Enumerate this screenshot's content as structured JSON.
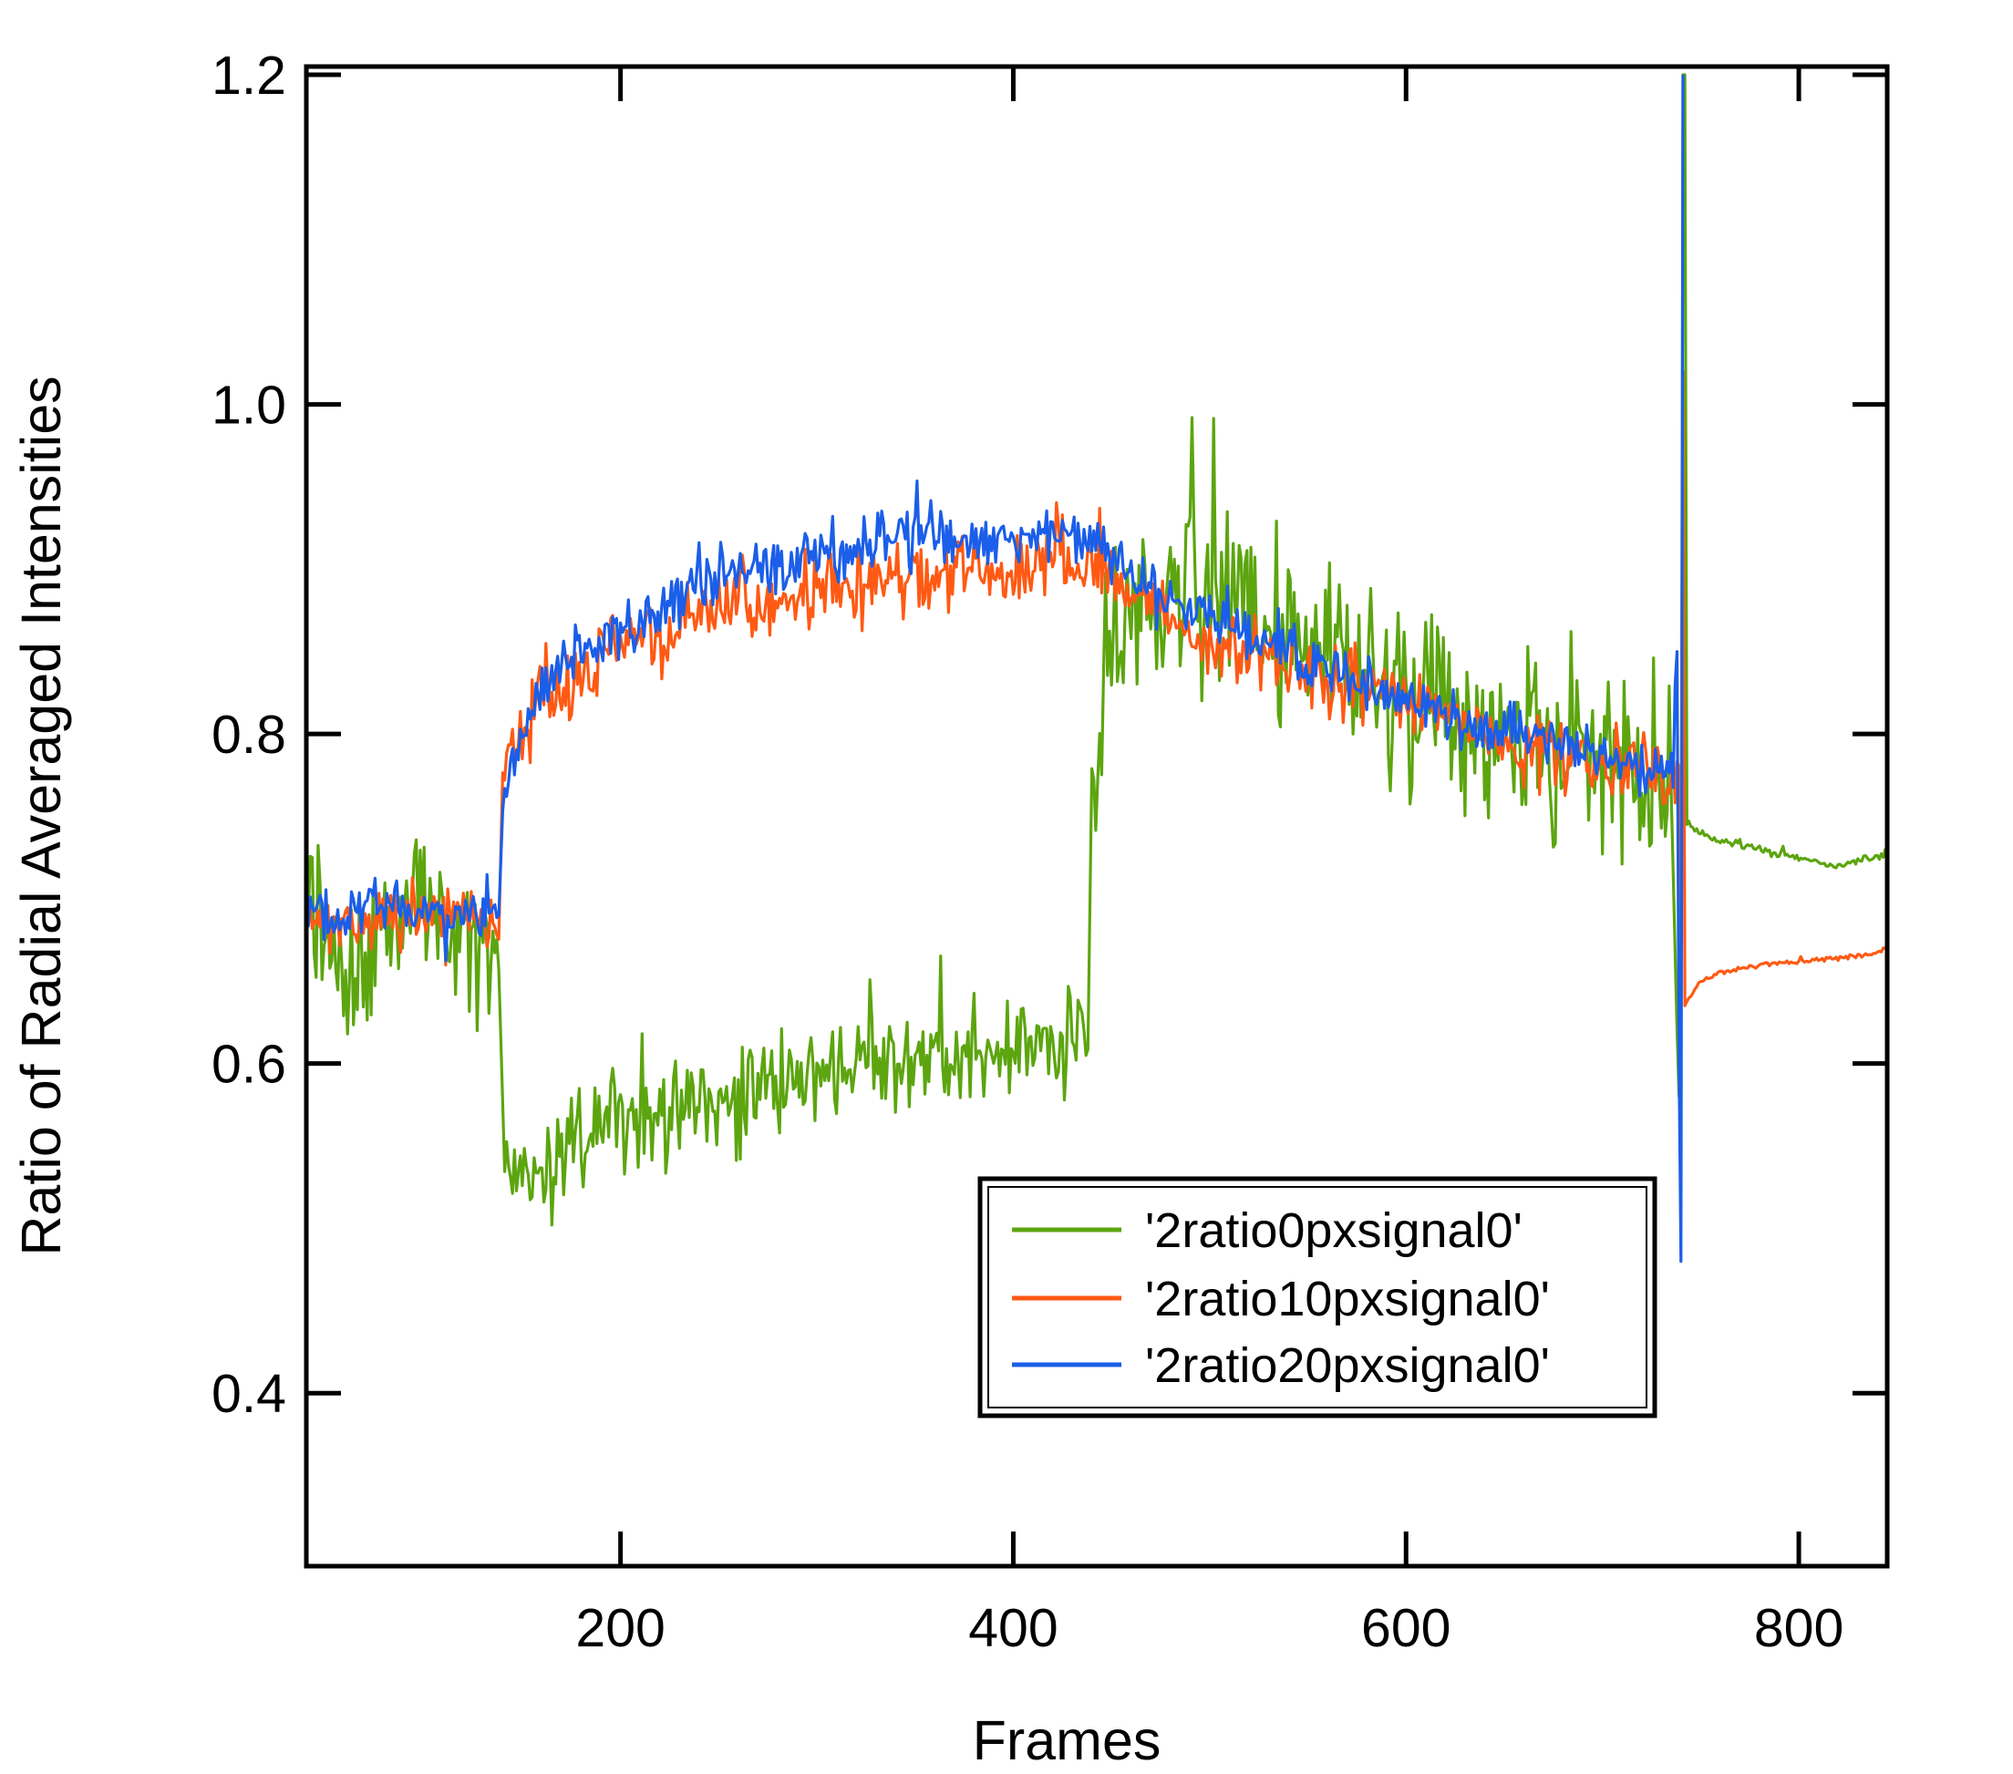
{
  "chart_data": {
    "type": "line",
    "title": "",
    "xlabel": "Frames",
    "ylabel": "Ratio of Radial Averaged Intensities",
    "xlim": [
      40,
      845
    ],
    "ylim": [
      0.295,
      1.205
    ],
    "xticks": [
      200,
      400,
      600,
      800
    ],
    "xtick_labels": [
      "200",
      "400",
      "600",
      "800"
    ],
    "yticks": [
      0.4,
      0.6,
      0.8,
      1.0,
      1.2
    ],
    "ytick_labels": [
      "0.4",
      "0.6",
      "0.8",
      "1.0",
      "1.2"
    ],
    "grid": false,
    "legend_position": "bottom-right",
    "series": [
      {
        "name": "'2ratio0pxsignal0'",
        "color": "#5ca50f",
        "segments": [
          {
            "x": [
              40,
              60,
              80,
              100,
              120,
              138
            ],
            "y": [
              0.69,
              0.66,
              0.68,
              0.7,
              0.68,
              0.67
            ],
            "noise": 0.07
          },
          {
            "x": [
              141,
              160,
              180,
              200,
              220,
              240,
              260,
              280,
              300,
              320,
              340,
              360,
              380,
              400,
              420,
              438
            ],
            "y": [
              0.54,
              0.53,
              0.55,
              0.57,
              0.57,
              0.58,
              0.58,
              0.59,
              0.59,
              0.6,
              0.6,
              0.6,
              0.61,
              0.61,
              0.61,
              0.62
            ],
            "noise": 0.045
          },
          {
            "x": [
              440,
              450,
              460,
              480,
              500,
              520,
              540,
              560,
              580,
              600,
              620,
              640,
              660,
              680,
              700,
              720,
              735
            ],
            "y": [
              0.75,
              0.86,
              0.87,
              0.88,
              0.88,
              0.87,
              0.86,
              0.85,
              0.84,
              0.83,
              0.82,
              0.81,
              0.8,
              0.79,
              0.78,
              0.77,
              0.76
            ],
            "noise": 0.08
          },
          {
            "x": [
              738,
              739,
              740,
              741,
              742,
              743
            ],
            "y": [
              0.62,
              0.58,
              0.64,
              1.2,
              1.2,
              0.75
            ],
            "noise": 0
          },
          {
            "x": [
              743,
              760,
              780,
              800,
              820,
              840,
              845
            ],
            "y": [
              0.745,
              0.735,
              0.73,
              0.725,
              0.72,
              0.725,
              0.73
            ],
            "noise": 0.004
          }
        ]
      },
      {
        "name": "'2ratio10pxsignal0'",
        "color": "#ff5a14",
        "segments": [
          {
            "x": [
              40,
              60,
              80,
              100,
              120,
              138
            ],
            "y": [
              0.69,
              0.68,
              0.69,
              0.69,
              0.69,
              0.68
            ],
            "noise": 0.025
          },
          {
            "x": [
              140,
              160,
              180,
              200,
              220,
              240,
              260,
              280,
              300,
              320,
              340,
              360,
              380,
              400,
              420,
              440
            ],
            "y": [
              0.77,
              0.82,
              0.83,
              0.85,
              0.86,
              0.87,
              0.88,
              0.88,
              0.89,
              0.89,
              0.89,
              0.89,
              0.9,
              0.9,
              0.91,
              0.9
            ],
            "noise": 0.035
          },
          {
            "x": [
              440,
              460,
              480,
              500,
              520,
              540,
              560,
              580,
              600,
              620,
              640,
              660,
              680,
              700,
              720,
              738
            ],
            "y": [
              0.9,
              0.89,
              0.87,
              0.86,
              0.85,
              0.84,
              0.83,
              0.83,
              0.82,
              0.81,
              0.8,
              0.79,
              0.79,
              0.78,
              0.78,
              0.77
            ],
            "noise": 0.03
          },
          {
            "x": [
              739,
              740,
              741,
              742
            ],
            "y": [
              0.78,
              0.7,
              1.02,
              0.64
            ],
            "noise": 0
          },
          {
            "x": [
              742,
              750,
              760,
              780,
              800,
              820,
              840,
              845
            ],
            "y": [
              0.635,
              0.65,
              0.655,
              0.66,
              0.662,
              0.664,
              0.667,
              0.672
            ],
            "noise": 0.002
          }
        ]
      },
      {
        "name": "'2ratio20pxsignal0'",
        "color": "#1b5ee9",
        "segments": [
          {
            "x": [
              40,
              60,
              80,
              100,
              120,
              138
            ],
            "y": [
              0.69,
              0.69,
              0.7,
              0.69,
              0.69,
              0.69
            ],
            "noise": 0.02
          },
          {
            "x": [
              140,
              160,
              180,
              200,
              220,
              240,
              260,
              280,
              300,
              320,
              340,
              360,
              380,
              400,
              420,
              440
            ],
            "y": [
              0.76,
              0.83,
              0.85,
              0.86,
              0.87,
              0.89,
              0.9,
              0.9,
              0.91,
              0.91,
              0.92,
              0.92,
              0.92,
              0.92,
              0.92,
              0.92
            ],
            "noise": 0.025
          },
          {
            "x": [
              440,
              460,
              480,
              500,
              520,
              540,
              560,
              580,
              600,
              620,
              640,
              660,
              680,
              700,
              720,
              736
            ],
            "y": [
              0.92,
              0.9,
              0.88,
              0.87,
              0.86,
              0.85,
              0.84,
              0.83,
              0.82,
              0.81,
              0.8,
              0.8,
              0.79,
              0.79,
              0.78,
              0.78
            ],
            "noise": 0.022
          },
          {
            "x": [
              737,
              738,
              739,
              740,
              741
            ],
            "y": [
              0.83,
              0.85,
              0.6,
              0.48,
              1.2
            ],
            "noise": 0
          }
        ]
      }
    ]
  }
}
